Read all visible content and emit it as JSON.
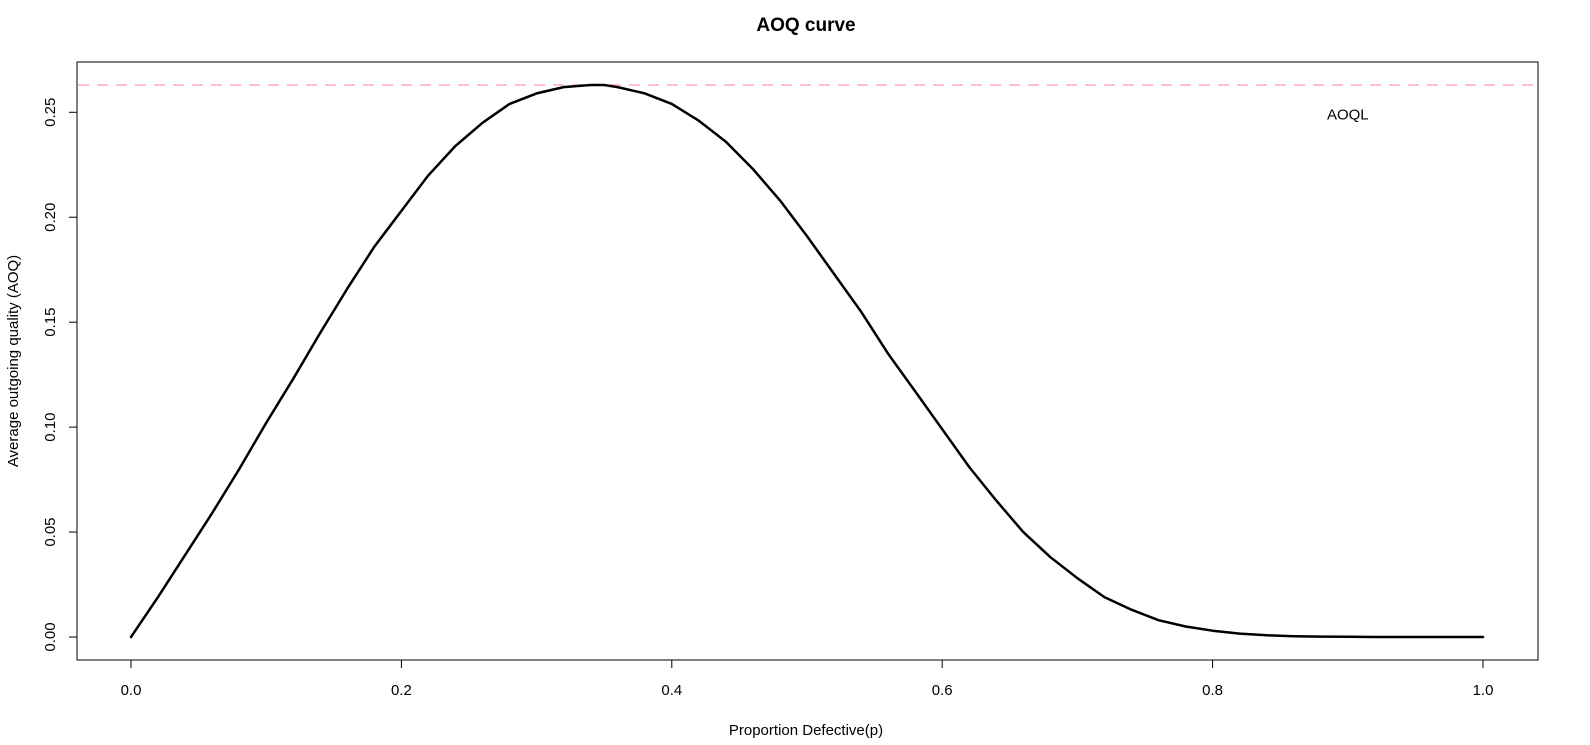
{
  "chart_data": {
    "type": "line",
    "title": "AOQ curve",
    "xlabel": "Proportion Defective(p)",
    "ylabel": "Average outgoing quality (AOQ)",
    "xlim": [
      0.0,
      1.0
    ],
    "ylim": [
      0.0,
      0.263
    ],
    "x_ticks": [
      "0.0",
      "0.2",
      "0.4",
      "0.6",
      "0.8",
      "1.0"
    ],
    "y_ticks": [
      "0.00",
      "0.05",
      "0.10",
      "0.15",
      "0.20",
      "0.25"
    ],
    "grid": false,
    "legend": "none",
    "series": [
      {
        "x": [
          0.0,
          0.02,
          0.04,
          0.06,
          0.08,
          0.1,
          0.12,
          0.14,
          0.16,
          0.18,
          0.2,
          0.22,
          0.24,
          0.26,
          0.28,
          0.3,
          0.32,
          0.34,
          0.35,
          0.36,
          0.38,
          0.4,
          0.42,
          0.44,
          0.46,
          0.48,
          0.5,
          0.52,
          0.54,
          0.56,
          0.58,
          0.6,
          0.62,
          0.64,
          0.66,
          0.68,
          0.7,
          0.72,
          0.74,
          0.76,
          0.78,
          0.8,
          0.82,
          0.84,
          0.86,
          0.88,
          0.9,
          0.92,
          0.94,
          0.96,
          0.98,
          1.0
        ],
        "y": [
          0.0,
          0.019,
          0.039,
          0.059,
          0.08,
          0.102,
          0.123,
          0.145,
          0.166,
          0.186,
          0.203,
          0.22,
          0.234,
          0.245,
          0.254,
          0.259,
          0.262,
          0.263,
          0.263,
          0.262,
          0.259,
          0.254,
          0.246,
          0.236,
          0.223,
          0.208,
          0.191,
          0.173,
          0.155,
          0.135,
          0.117,
          0.099,
          0.081,
          0.065,
          0.05,
          0.038,
          0.028,
          0.019,
          0.013,
          0.008,
          0.005,
          0.003,
          0.0016,
          0.0008,
          0.0004,
          0.0002,
          0.0001,
          0.0,
          0.0,
          0.0,
          0.0,
          0.0
        ],
        "color": "#000000"
      }
    ],
    "reference_line": {
      "y": 0.263,
      "color": "#ffc0cb",
      "style": "dashed"
    },
    "annotations": [
      {
        "text": "AOQL",
        "x": 0.9,
        "y": 0.249
      }
    ]
  }
}
